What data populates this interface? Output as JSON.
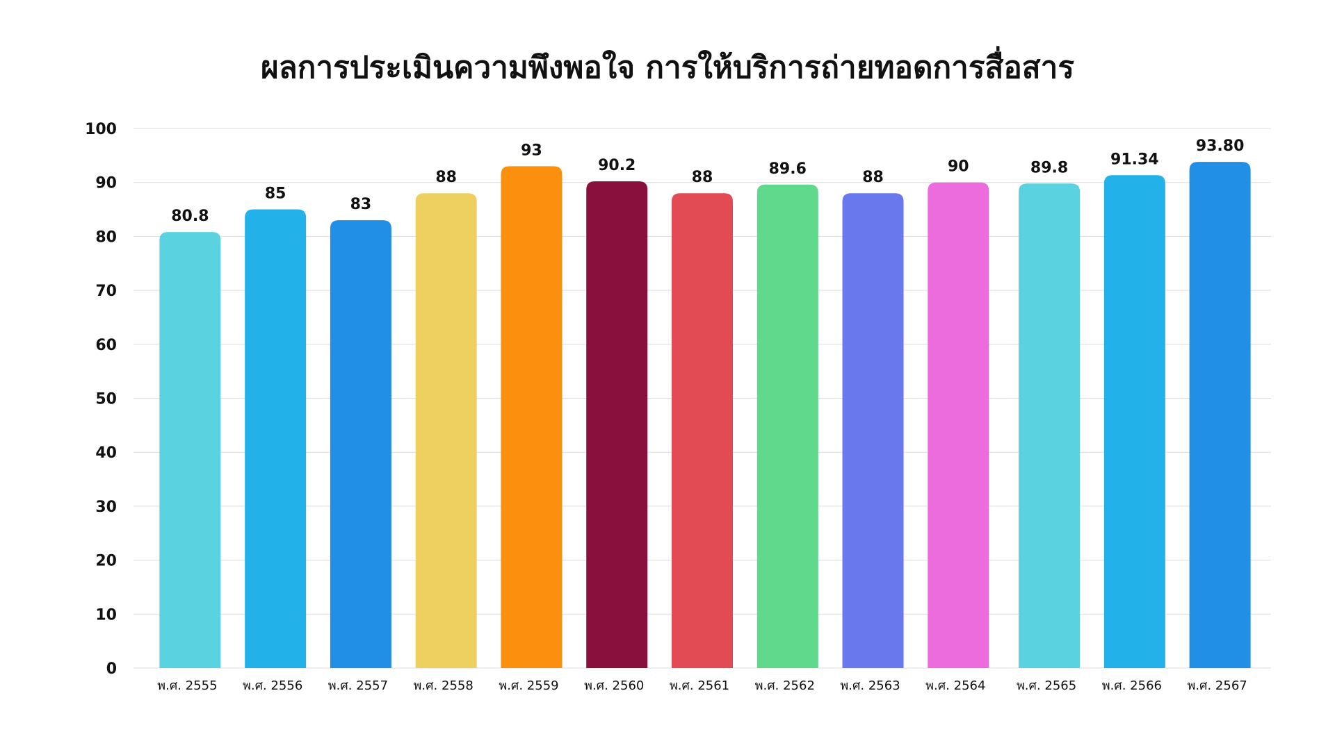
{
  "chart_data": {
    "type": "bar",
    "title": "ผลการประเมินความพึงพอใจ การให้บริการถ่ายทอดการสื่อสาร",
    "xlabel": "",
    "ylabel": "",
    "ylim": [
      0,
      100
    ],
    "yticks": [
      "0",
      "10",
      "20",
      "30",
      "40",
      "50",
      "60",
      "70",
      "80",
      "90",
      "100"
    ],
    "grid": true,
    "categories": [
      "พ.ศ. 2555",
      "พ.ศ. 2556",
      "พ.ศ. 2557",
      "พ.ศ. 2558",
      "พ.ศ. 2559",
      "พ.ศ. 2560",
      "พ.ศ. 2561",
      "พ.ศ. 2562",
      "พ.ศ. 2563",
      "พ.ศ. 2564",
      "พ.ศ. 2565",
      "พ.ศ. 2566",
      "พ.ศ. 2567"
    ],
    "values": [
      80.8,
      85,
      83,
      88,
      93,
      90.2,
      88,
      89.6,
      88,
      90,
      89.8,
      91.34,
      93.8
    ],
    "data_labels": [
      "80.8",
      "85",
      "83",
      "88",
      "93",
      "90.2",
      "88",
      "89.6",
      "88",
      "90",
      "89.8",
      "91.34",
      "93.80"
    ],
    "colors": [
      "#5ad2e0",
      "#22b1e8",
      "#218fe6",
      "#eed060",
      "#fd8f0f",
      "#89103c",
      "#e24a54",
      "#60d98c",
      "#6a78ee",
      "#ec6cdd",
      "#5ad2e0",
      "#22b1e8",
      "#218fe6"
    ]
  }
}
